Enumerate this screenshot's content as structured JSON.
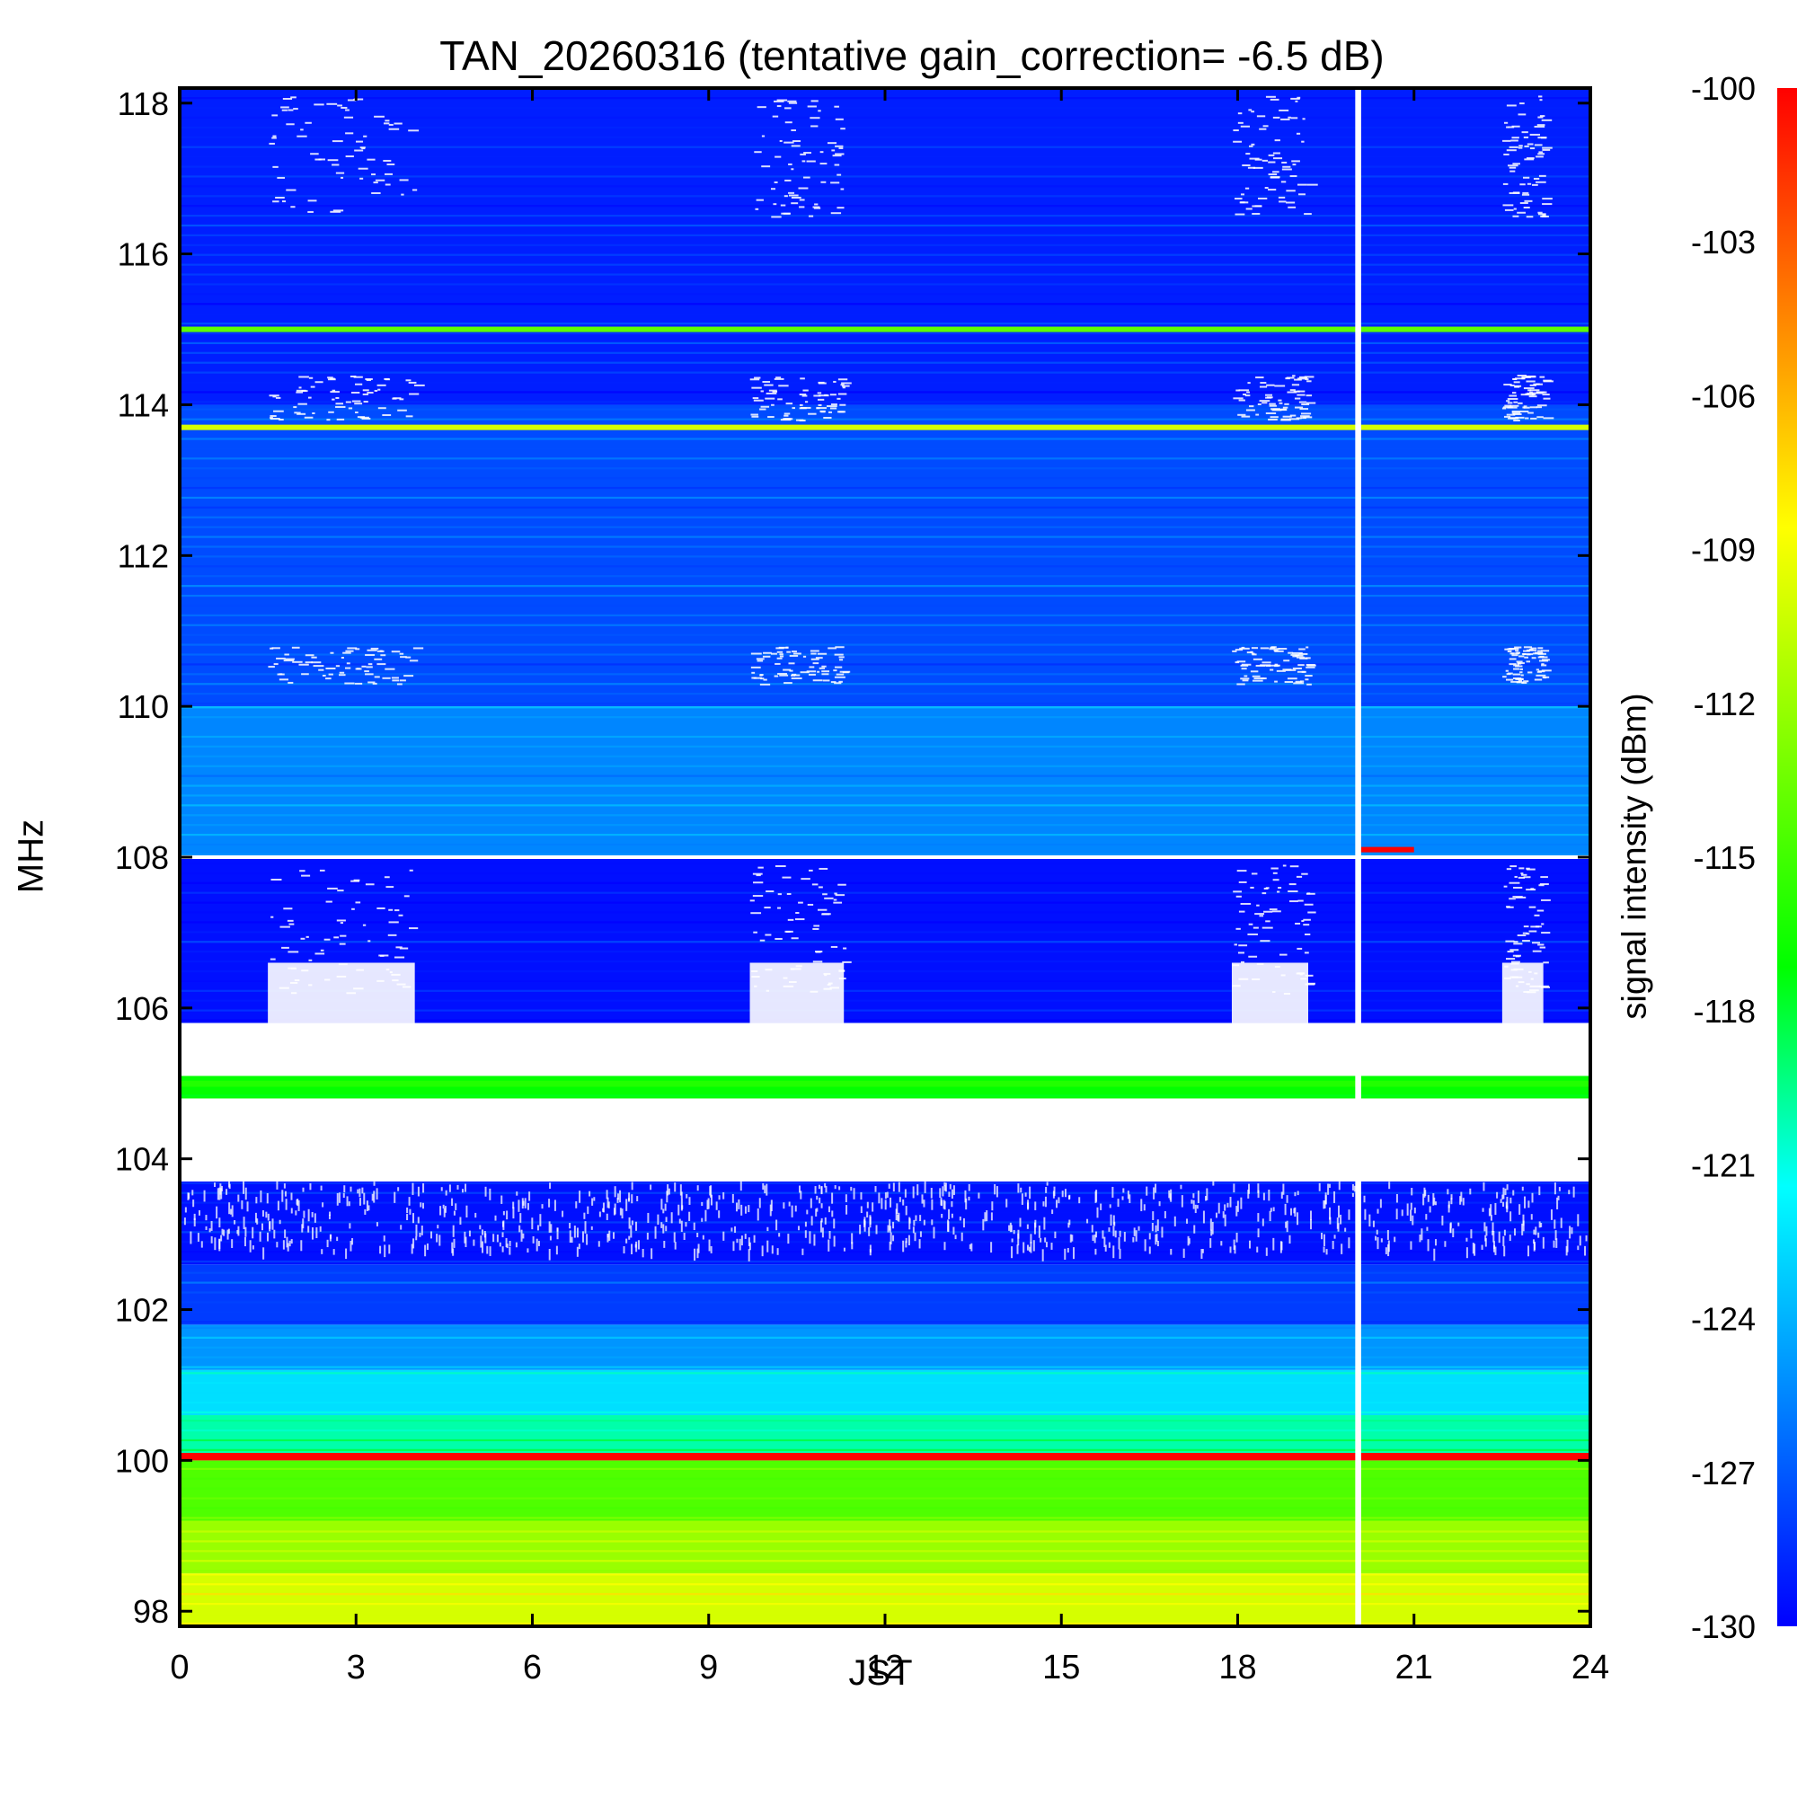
{
  "chart_data": {
    "type": "heatmap",
    "title": "TAN_20260316 (tentative gain_correction= -6.5 dB)",
    "xlabel": "JST",
    "ylabel": "MHz",
    "colorbar_label": "signal intensity (dBm)",
    "xlim": [
      0,
      24
    ],
    "ylim": [
      97.8,
      118.2
    ],
    "x_ticks": [
      0,
      3,
      6,
      9,
      12,
      15,
      18,
      21,
      24
    ],
    "y_ticks": [
      98,
      100,
      102,
      104,
      106,
      108,
      110,
      112,
      114,
      116,
      118
    ],
    "colorbar_range": [
      -130,
      -100
    ],
    "colorbar_ticks": [
      -100,
      -103,
      -106,
      -109,
      -112,
      -115,
      -118,
      -121,
      -124,
      -127,
      -130
    ],
    "colormap": [
      "#0000ff",
      "#0080ff",
      "#00ffff",
      "#00ff00",
      "#80ff00",
      "#ffff00",
      "#ff8000",
      "#ff0000"
    ],
    "bands": [
      {
        "from_mhz": 97.8,
        "to_mhz": 98.5,
        "dbm": -110
      },
      {
        "from_mhz": 98.5,
        "to_mhz": 99.2,
        "dbm": -112
      },
      {
        "from_mhz": 99.2,
        "to_mhz": 100.0,
        "dbm": -114.5
      },
      {
        "from_mhz": 100.0,
        "to_mhz": 100.1,
        "dbm": -100
      },
      {
        "from_mhz": 100.1,
        "to_mhz": 100.6,
        "dbm": -120
      },
      {
        "from_mhz": 100.6,
        "to_mhz": 101.2,
        "dbm": -122.5
      },
      {
        "from_mhz": 101.2,
        "to_mhz": 101.8,
        "dbm": -125
      },
      {
        "from_mhz": 101.8,
        "to_mhz": 102.6,
        "dbm": -128
      },
      {
        "from_mhz": 102.6,
        "to_mhz": 103.7,
        "dbm": -129.5
      },
      {
        "from_mhz": 104.8,
        "to_mhz": 105.1,
        "dbm": -117
      },
      {
        "from_mhz": 105.8,
        "to_mhz": 108.0,
        "dbm": -129.5
      },
      {
        "from_mhz": 108.0,
        "to_mhz": 110.0,
        "dbm": -125.5
      },
      {
        "from_mhz": 110.0,
        "to_mhz": 114.0,
        "dbm": -127.5
      },
      {
        "from_mhz": 114.0,
        "to_mhz": 118.2,
        "dbm": -129
      }
    ],
    "gaps_no_data": [
      {
        "from_mhz": 103.7,
        "to_mhz": 104.8
      },
      {
        "from_mhz": 105.1,
        "to_mhz": 105.8
      }
    ],
    "lines": [
      {
        "mhz": 113.7,
        "dbm": -110
      },
      {
        "mhz": 115.0,
        "dbm": -114
      },
      {
        "mhz": 105.0,
        "dbm": -116
      },
      {
        "mhz": 100.05,
        "dbm": -100
      },
      {
        "mhz": 108.1,
        "dbm": -100,
        "x_from": 20.1,
        "x_to": 21.0
      }
    ],
    "no_data_time": [
      20.0,
      20.1
    ],
    "activity_periods": [
      [
        1.5,
        4.0
      ],
      [
        9.7,
        11.3
      ],
      [
        17.9,
        19.2
      ],
      [
        22.5,
        23.2
      ]
    ]
  }
}
